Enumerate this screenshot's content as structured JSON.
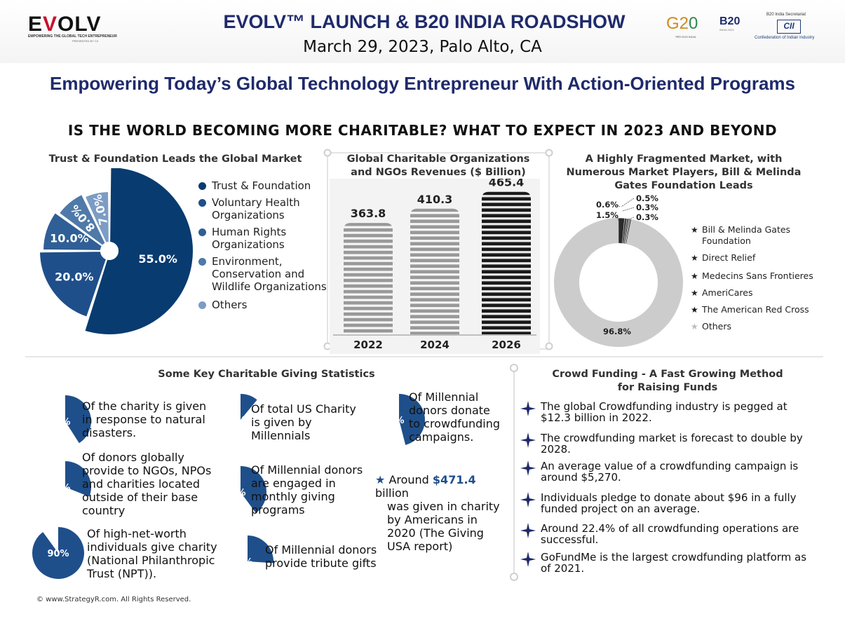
{
  "header": {
    "logo_text_e": "E",
    "logo_text_v": "V",
    "logo_text_rest": "OLV",
    "logo_text_e2": "E",
    "logo_tagline": "EMPOWERING THE GLOBAL TECH ENTREPRENEUR",
    "logo_presented": "PRESENTED BY CII",
    "title": "EVOLV™ LAUNCH & B20 INDIA ROADSHOW",
    "date_location": "March 29, 2023, Palo Alto, CA",
    "g20_text": "G2",
    "g20_zero": "0",
    "g20_sub": "भारत 2023 INDIA",
    "b20_text": "B20",
    "b20_sub": "INDIA 2023",
    "cii_top": "B20 India Secretariat",
    "cii_logo": "CII",
    "cii_bottom": "Confederation of Indian Industry"
  },
  "subtitle": "Empowering Today’s Global Technology Entrepreneur With Action-Oriented Programs",
  "infographic_title": "IS THE WORLD BECOMING MORE CHARITABLE? WHAT TO EXPECT IN 2023 AND BEYOND",
  "colors": {
    "navy": "#083b70",
    "blue2": "#1f4f8a",
    "blue3": "#2f5f96",
    "blue4": "#4f79a8",
    "blue5": "#7b9cc4",
    "bar_gray": "#999999",
    "bar_dark": "#1a1a1a",
    "donut_gray": "#cccccc",
    "title_blue": "#1f2a6b"
  },
  "chart_data": [
    {
      "type": "pie",
      "title": "Trust & Foundation Leads the Global Market",
      "categories": [
        "Trust & Foundation",
        "Voluntary Health Organizations",
        "Human Rights Organizations",
        "Environment, Conservation and Wildlife Organizations",
        "Others"
      ],
      "values": [
        55.0,
        20.0,
        10.0,
        8.0,
        7.0
      ],
      "labels": [
        "55.0%",
        "20.0%",
        "10.0%",
        "8.0%",
        "7.0%"
      ],
      "legend_lines": [
        [
          "Trust & Foundation"
        ],
        [
          "Voluntary Health",
          "Organizations"
        ],
        [
          "Human Rights",
          "Organizations"
        ],
        [
          "Environment,",
          "Conservation and",
          "Wildlife Organizations"
        ],
        [
          "Others"
        ]
      ],
      "legend": "right"
    },
    {
      "type": "bar",
      "title_lines": [
        "Global Charitable Organizations",
        "and NGOs Revenues ($ Billion)"
      ],
      "categories": [
        "2022",
        "2024",
        "2026"
      ],
      "values": [
        363.8,
        410.3,
        465.4
      ],
      "labels": [
        "363.8",
        "410.3",
        "465.4"
      ],
      "ylim": [
        0,
        500
      ]
    },
    {
      "type": "pie",
      "title_lines": [
        "A Highly Fragmented Market, with",
        "Numerous Market Players, Bill & Melinda",
        "Gates Foundation Leads"
      ],
      "categories": [
        "Bill & Melinda Gates Foundation",
        "Direct Relief",
        "Medecins Sans Frontieres",
        "AmeriCares",
        "The American Red Cross",
        "Others"
      ],
      "values": [
        1.5,
        0.6,
        0.5,
        0.3,
        0.3,
        96.8
      ],
      "labels": [
        "1.5%",
        "0.6%",
        "0.5%",
        "0.3%",
        "0.3%",
        "96.8%"
      ],
      "legend_lines": [
        [
          "Bill & Melinda Gates",
          "Foundation"
        ],
        [
          "Direct Relief"
        ],
        [
          "Medecins Sans Frontieres"
        ],
        [
          "AmeriCares"
        ],
        [
          "The American Red Cross"
        ],
        [
          "Others"
        ]
      ],
      "legend": "right"
    }
  ],
  "stats": {
    "title": "Some Key Charitable Giving Statistics",
    "items": [
      {
        "pct": 41,
        "label": "41%",
        "lines": [
          "Of the charity is given",
          "in response to natural",
          "disasters."
        ]
      },
      {
        "pct": 31,
        "label": "31%",
        "lines": [
          "Of donors globally",
          "provide to NGOs, NPOs",
          "and charities located",
          "outside of their base",
          "country"
        ]
      },
      {
        "pct": 90,
        "label": "90%",
        "lines": [
          "Of high-net-worth",
          "individuals give charity",
          "(National Philanthropic",
          "Trust (NPT))."
        ]
      },
      {
        "pct": 11,
        "label": "11%",
        "lines": [
          "Of total US Charity",
          "is given by",
          "Millennials"
        ]
      },
      {
        "pct": 40,
        "label": "40%",
        "lines": [
          "Of Millennial donors",
          "are engaged in",
          "monthly giving",
          "programs"
        ]
      },
      {
        "pct": 26,
        "label": "26%",
        "lines": [
          "Of Millennial donors",
          "provide tribute gifts"
        ]
      },
      {
        "pct": 46,
        "label": "46%",
        "lines": [
          "Of Millennial",
          "donors donate",
          "to crowdfunding",
          "campaigns."
        ]
      }
    ],
    "highlight": {
      "prefix": "Around ",
      "amount": "$471.4",
      "suffix": " billion",
      "lines": [
        "was given in charity",
        "by Americans in",
        "2020 (The Giving",
        "USA report)"
      ]
    }
  },
  "crowdfunding": {
    "title_lines": [
      "Crowd Funding - A Fast Growing Method",
      "for Raising Funds"
    ],
    "items": [
      [
        "The global Crowdfunding industry is pegged at",
        "$12.3 billion in 2022."
      ],
      [
        "The crowdfunding market is forecast to double by",
        "2028."
      ],
      [
        "An average value of a crowdfunding campaign is",
        "around $5,270."
      ],
      [
        "Individuals pledge to donate about $96 in a fully",
        "funded project on an average."
      ],
      [
        "Around 22.4% of all crowdfunding operations are",
        "successful."
      ],
      [
        "GoFundMe is the largest crowdfunding platform as",
        "of 2021."
      ]
    ]
  },
  "footer": "© www.StrategyR.com. All Rights Reserved."
}
